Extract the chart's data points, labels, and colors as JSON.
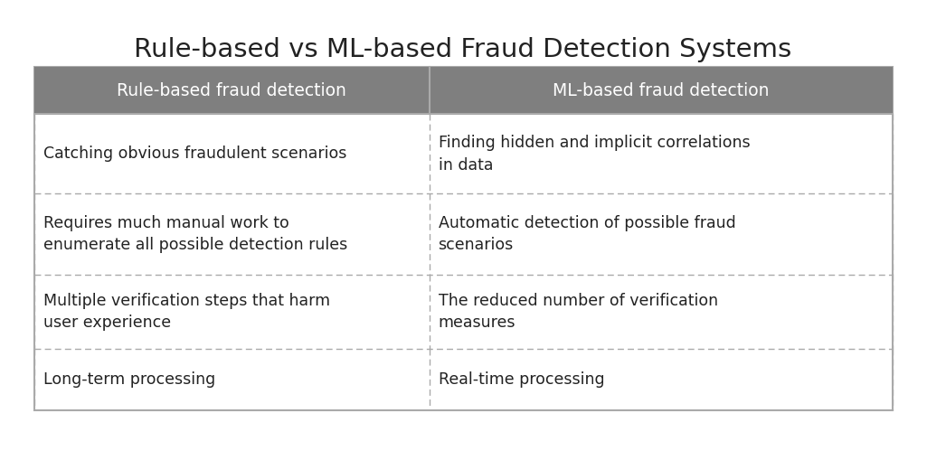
{
  "title": "Rule-based vs ML-based Fraud Detection Systems",
  "title_fontsize": 21,
  "background_color": "#ffffff",
  "header_bg_color": "#7f7f7f",
  "header_text_color": "#ffffff",
  "cell_text_color": "#222222",
  "border_color": "#aaaaaa",
  "dashed_color": "#aaaaaa",
  "headers": [
    "Rule-based fraud detection",
    "ML-based fraud detection"
  ],
  "rows": [
    [
      "Catching obvious fraudulent scenarios",
      "Finding hidden and implicit correlations\nin data"
    ],
    [
      "Requires much manual work to\nenumerate all possible detection rules",
      "Automatic detection of possible fraud\nscenarios"
    ],
    [
      "Multiple verification steps that harm\nuser experience",
      "The reduced number of verification\nmeasures"
    ],
    [
      "Long-term processing",
      "Real-time processing"
    ]
  ],
  "header_fontsize": 13.5,
  "cell_fontsize": 12.5
}
